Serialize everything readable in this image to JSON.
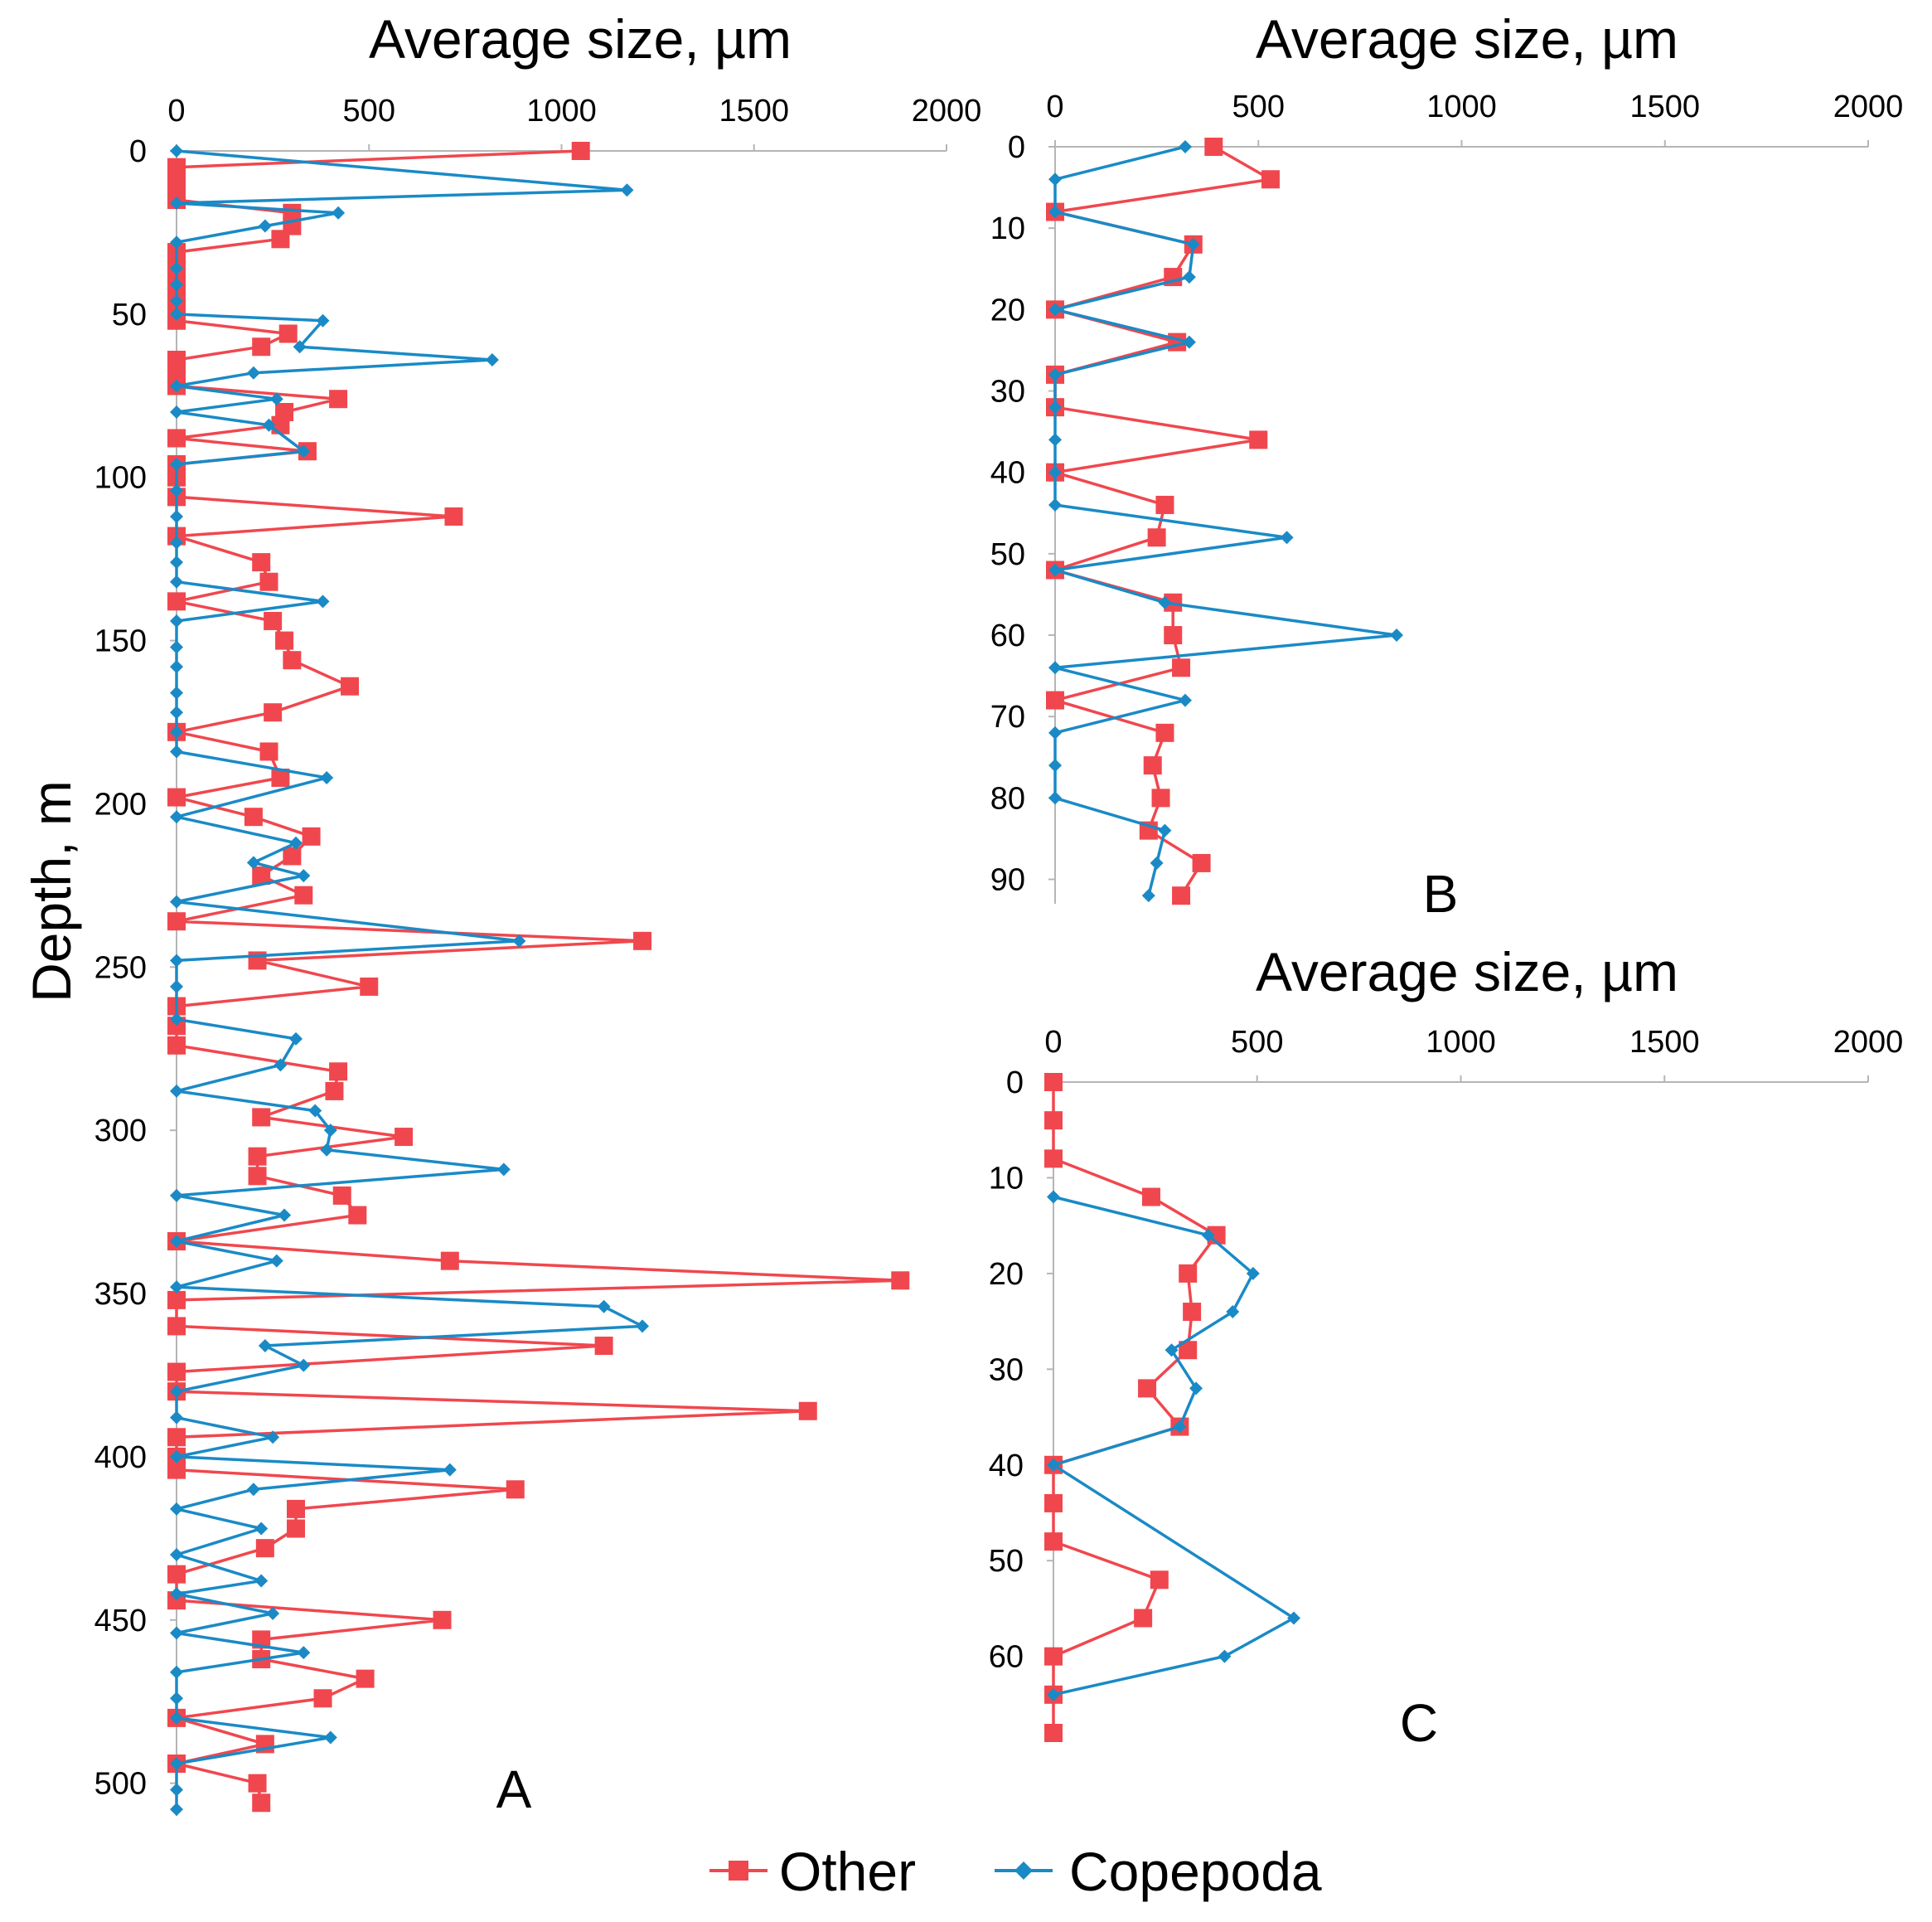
{
  "legend": [
    {
      "name": "Other",
      "color": "#f0474e",
      "marker": "square"
    },
    {
      "name": "Copepoda",
      "color": "#1a8ac6",
      "marker": "diamond"
    }
  ],
  "y_axis_label": "Depth, m",
  "chart_data": [
    {
      "type": "line",
      "panel": "A",
      "title": "Average size, µm",
      "xlabel": "Average size, µm",
      "ylabel": "Depth, m",
      "xlim": [
        0,
        2000
      ],
      "ylim": [
        0,
        510
      ],
      "xticks": [
        0,
        500,
        1000,
        1500,
        2000
      ],
      "yticks": [
        0,
        50,
        100,
        150,
        200,
        250,
        300,
        350,
        400,
        450,
        500
      ],
      "series": [
        {
          "name": "Other",
          "color": "#f0474e",
          "marker": "square",
          "points": [
            [
              1050,
              0
            ],
            [
              0,
              5
            ],
            [
              0,
              10
            ],
            [
              0,
              15
            ],
            [
              300,
              19
            ],
            [
              300,
              23
            ],
            [
              270,
              27
            ],
            [
              0,
              31
            ],
            [
              0,
              35
            ],
            [
              0,
              39
            ],
            [
              0,
              43
            ],
            [
              0,
              47
            ],
            [
              0,
              52
            ],
            [
              290,
              56
            ],
            [
              220,
              60
            ],
            [
              0,
              64
            ],
            [
              0,
              68
            ],
            [
              0,
              72
            ],
            [
              420,
              76
            ],
            [
              280,
              80
            ],
            [
              270,
              84
            ],
            [
              0,
              88
            ],
            [
              340,
              92
            ],
            [
              0,
              96
            ],
            [
              0,
              100
            ],
            [
              0,
              106
            ],
            [
              720,
              112
            ],
            [
              0,
              118
            ],
            [
              220,
              126
            ],
            [
              240,
              132
            ],
            [
              0,
              138
            ],
            [
              250,
              144
            ],
            [
              280,
              150
            ],
            [
              300,
              156
            ],
            [
              450,
              164
            ],
            [
              250,
              172
            ],
            [
              0,
              178
            ],
            [
              240,
              184
            ],
            [
              270,
              192
            ],
            [
              0,
              198
            ],
            [
              200,
              204
            ],
            [
              350,
              210
            ],
            [
              300,
              216
            ],
            [
              220,
              222
            ],
            [
              330,
              228
            ],
            [
              0,
              236
            ],
            [
              1210,
              242
            ],
            [
              210,
              248
            ],
            [
              500,
              256
            ],
            [
              0,
              262
            ],
            [
              0,
              268
            ],
            [
              0,
              274
            ],
            [
              420,
              282
            ],
            [
              410,
              288
            ],
            [
              220,
              296
            ],
            [
              590,
              302
            ],
            [
              210,
              308
            ],
            [
              210,
              314
            ],
            [
              430,
              320
            ],
            [
              470,
              326
            ],
            [
              0,
              334
            ],
            [
              710,
              340
            ],
            [
              1880,
              346
            ],
            [
              0,
              352
            ],
            [
              0,
              360
            ],
            [
              1110,
              366
            ],
            [
              0,
              374
            ],
            [
              0,
              380
            ],
            [
              1640,
              386
            ],
            [
              0,
              394
            ],
            [
              0,
              400
            ],
            [
              0,
              404
            ],
            [
              880,
              410
            ],
            [
              310,
              416
            ],
            [
              310,
              422
            ],
            [
              230,
              428
            ],
            [
              0,
              436
            ],
            [
              0,
              444
            ],
            [
              690,
              450
            ],
            [
              220,
              456
            ],
            [
              220,
              462
            ],
            [
              490,
              468
            ],
            [
              380,
              474
            ],
            [
              0,
              480
            ],
            [
              230,
              488
            ],
            [
              0,
              494
            ],
            [
              210,
              500
            ],
            [
              220,
              506
            ]
          ]
        },
        {
          "name": "Copepoda",
          "color": "#1a8ac6",
          "marker": "diamond",
          "points": [
            [
              0,
              0
            ],
            [
              1170,
              12
            ],
            [
              0,
              16
            ],
            [
              420,
              19
            ],
            [
              230,
              23
            ],
            [
              0,
              28
            ],
            [
              0,
              36
            ],
            [
              0,
              41
            ],
            [
              0,
              46
            ],
            [
              0,
              50
            ],
            [
              380,
              52
            ],
            [
              320,
              60
            ],
            [
              820,
              64
            ],
            [
              200,
              68
            ],
            [
              0,
              72
            ],
            [
              260,
              76
            ],
            [
              0,
              80
            ],
            [
              240,
              84
            ],
            [
              330,
              92
            ],
            [
              0,
              96
            ],
            [
              0,
              104
            ],
            [
              0,
              112
            ],
            [
              0,
              120
            ],
            [
              0,
              126
            ],
            [
              0,
              132
            ],
            [
              380,
              138
            ],
            [
              0,
              144
            ],
            [
              0,
              152
            ],
            [
              0,
              158
            ],
            [
              0,
              166
            ],
            [
              0,
              172
            ],
            [
              0,
              178
            ],
            [
              0,
              184
            ],
            [
              390,
              192
            ],
            [
              0,
              204
            ],
            [
              310,
              212
            ],
            [
              200,
              218
            ],
            [
              330,
              222
            ],
            [
              0,
              230
            ],
            [
              890,
              242
            ],
            [
              0,
              248
            ],
            [
              0,
              256
            ],
            [
              0,
              266
            ],
            [
              310,
              272
            ],
            [
              270,
              280
            ],
            [
              0,
              288
            ],
            [
              360,
              294
            ],
            [
              400,
              300
            ],
            [
              390,
              306
            ],
            [
              850,
              312
            ],
            [
              0,
              320
            ],
            [
              280,
              326
            ],
            [
              0,
              334
            ],
            [
              260,
              340
            ],
            [
              0,
              348
            ],
            [
              1110,
              354
            ],
            [
              1210,
              360
            ],
            [
              230,
              366
            ],
            [
              330,
              372
            ],
            [
              0,
              380
            ],
            [
              0,
              388
            ],
            [
              250,
              394
            ],
            [
              0,
              400
            ],
            [
              710,
              404
            ],
            [
              200,
              410
            ],
            [
              0,
              416
            ],
            [
              220,
              422
            ],
            [
              0,
              430
            ],
            [
              220,
              438
            ],
            [
              0,
              442
            ],
            [
              250,
              448
            ],
            [
              0,
              454
            ],
            [
              330,
              460
            ],
            [
              0,
              466
            ],
            [
              0,
              474
            ],
            [
              0,
              480
            ],
            [
              400,
              486
            ],
            [
              0,
              494
            ],
            [
              0,
              502
            ],
            [
              0,
              508
            ]
          ]
        }
      ]
    },
    {
      "type": "line",
      "panel": "B",
      "title": "Average size, µm",
      "xlabel": "Average size, µm",
      "ylabel": "Depth, m",
      "xlim": [
        0,
        2000
      ],
      "ylim": [
        0,
        93
      ],
      "xticks": [
        0,
        500,
        1000,
        1500,
        2000
      ],
      "yticks": [
        0,
        10,
        20,
        30,
        40,
        50,
        60,
        70,
        80,
        90
      ],
      "series": [
        {
          "name": "Other",
          "color": "#f0474e",
          "marker": "square",
          "points": [
            [
              390,
              0
            ],
            [
              530,
              4
            ],
            [
              0,
              8
            ],
            [
              340,
              12
            ],
            [
              290,
              16
            ],
            [
              0,
              20
            ],
            [
              300,
              24
            ],
            [
              0,
              28
            ],
            [
              0,
              32
            ],
            [
              500,
              36
            ],
            [
              0,
              40
            ],
            [
              270,
              44
            ],
            [
              250,
              48
            ],
            [
              0,
              52
            ],
            [
              290,
              56
            ],
            [
              290,
              60
            ],
            [
              310,
              64
            ],
            [
              0,
              68
            ],
            [
              270,
              72
            ],
            [
              240,
              76
            ],
            [
              260,
              80
            ],
            [
              230,
              84
            ],
            [
              360,
              88
            ],
            [
              310,
              92
            ]
          ]
        },
        {
          "name": "Copepoda",
          "color": "#1a8ac6",
          "marker": "diamond",
          "points": [
            [
              320,
              0
            ],
            [
              0,
              4
            ],
            [
              0,
              8
            ],
            [
              340,
              12
            ],
            [
              330,
              16
            ],
            [
              0,
              20
            ],
            [
              330,
              24
            ],
            [
              0,
              28
            ],
            [
              0,
              32
            ],
            [
              0,
              36
            ],
            [
              0,
              40
            ],
            [
              0,
              44
            ],
            [
              570,
              48
            ],
            [
              0,
              52
            ],
            [
              270,
              56
            ],
            [
              840,
              60
            ],
            [
              0,
              64
            ],
            [
              320,
              68
            ],
            [
              0,
              72
            ],
            [
              0,
              76
            ],
            [
              0,
              80
            ],
            [
              270,
              84
            ],
            [
              250,
              88
            ],
            [
              230,
              92
            ]
          ]
        }
      ]
    },
    {
      "type": "line",
      "panel": "C",
      "title": "Average size, µm",
      "xlabel": "Average size, µm",
      "ylabel": "Depth, m",
      "xlim": [
        0,
        2000
      ],
      "ylim": [
        0,
        68
      ],
      "xticks": [
        0,
        500,
        1000,
        1500,
        2000
      ],
      "yticks": [
        0,
        10,
        20,
        30,
        40,
        50,
        60
      ],
      "series": [
        {
          "name": "Other",
          "color": "#f0474e",
          "marker": "square",
          "points": [
            [
              0,
              0
            ],
            [
              0,
              4
            ],
            [
              0,
              8
            ],
            [
              240,
              12
            ],
            [
              400,
              16
            ],
            [
              330,
              20
            ],
            [
              340,
              24
            ],
            [
              330,
              28
            ],
            [
              230,
              32
            ],
            [
              310,
              36
            ],
            [
              0,
              40
            ],
            [
              0,
              44
            ],
            [
              0,
              48
            ],
            [
              260,
              52
            ],
            [
              220,
              56
            ],
            [
              0,
              60
            ],
            [
              0,
              64
            ],
            [
              0,
              68
            ]
          ]
        },
        {
          "name": "Copepoda",
          "color": "#1a8ac6",
          "marker": "diamond",
          "points": [
            [
              0,
              12
            ],
            [
              380,
              16
            ],
            [
              490,
              20
            ],
            [
              440,
              24
            ],
            [
              290,
              28
            ],
            [
              350,
              32
            ],
            [
              310,
              36
            ],
            [
              0,
              40
            ],
            [
              590,
              56
            ],
            [
              420,
              60
            ],
            [
              0,
              64
            ]
          ]
        }
      ]
    }
  ]
}
